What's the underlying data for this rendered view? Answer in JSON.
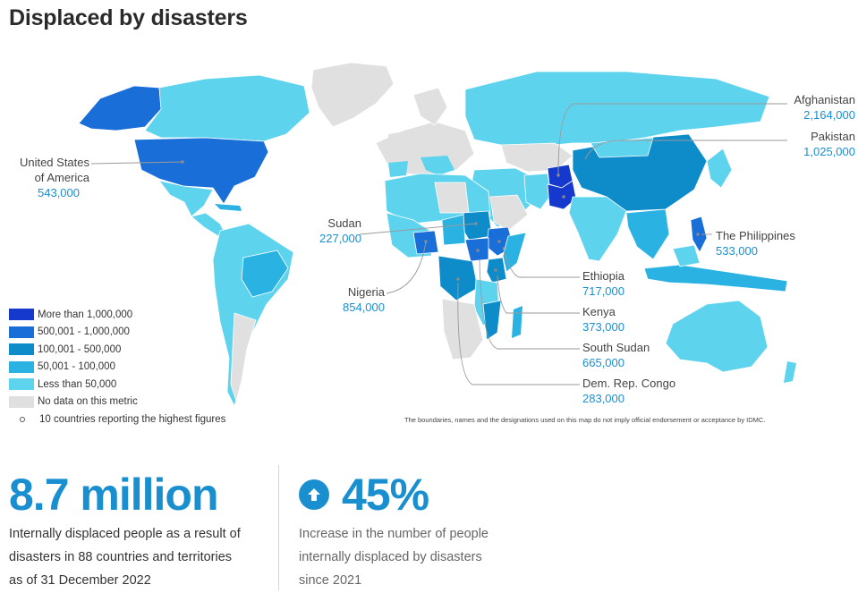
{
  "title": "Displaced by disasters",
  "colors": {
    "c1": "#1439cc",
    "c2": "#1a6ed8",
    "c3": "#0e8bc9",
    "c4": "#2ab3e2",
    "c5": "#5ed3ee",
    "nodata": "#e0e0e0",
    "accent": "#1a8fd0"
  },
  "legend": [
    {
      "label": "More than 1,000,000",
      "color": "#1439cc"
    },
    {
      "label": "500,001 - 1,000,000",
      "color": "#1a6ed8"
    },
    {
      "label": "100,001 - 500,000",
      "color": "#0e8bc9"
    },
    {
      "label": "50,001 - 100,000",
      "color": "#2ab3e2"
    },
    {
      "label": "Less than 50,000",
      "color": "#5ed3ee"
    },
    {
      "label": "No data on this metric",
      "color": "#e0e0e0"
    }
  ],
  "legend_marker_label": "10 countries reporting the highest figures",
  "callouts": {
    "usa": {
      "name1": "United States",
      "name2": "of America",
      "value": "543,000"
    },
    "sudan": {
      "name": "Sudan",
      "value": "227,000"
    },
    "nigeria": {
      "name": "Nigeria",
      "value": "854,000"
    },
    "afghanistan": {
      "name": "Afghanistan",
      "value": "2,164,000"
    },
    "pakistan": {
      "name": "Pakistan",
      "value": "1,025,000"
    },
    "philippines": {
      "name": "The Philippines",
      "value": "533,000"
    },
    "ethiopia": {
      "name": "Ethiopia",
      "value": "717,000"
    },
    "kenya": {
      "name": "Kenya",
      "value": "373,000"
    },
    "south_sudan": {
      "name": "South Sudan",
      "value": "665,000"
    },
    "drc": {
      "name": "Dem. Rep. Congo",
      "value": "283,000"
    }
  },
  "disclaimer": "The boundaries, names and the designations used on this map do not imply official endorsement or acceptance by IDMC.",
  "stats": [
    {
      "big": "8.7 million",
      "desc": [
        "Internally displaced people as a result of",
        "disasters in 88 countries and territories",
        "as of 31 December 2022"
      ]
    },
    {
      "big": "45%",
      "icon": "arrow-up-circle-icon",
      "desc": [
        "Increase in the number of people",
        "internally displaced by disasters",
        "since 2021"
      ]
    }
  ]
}
